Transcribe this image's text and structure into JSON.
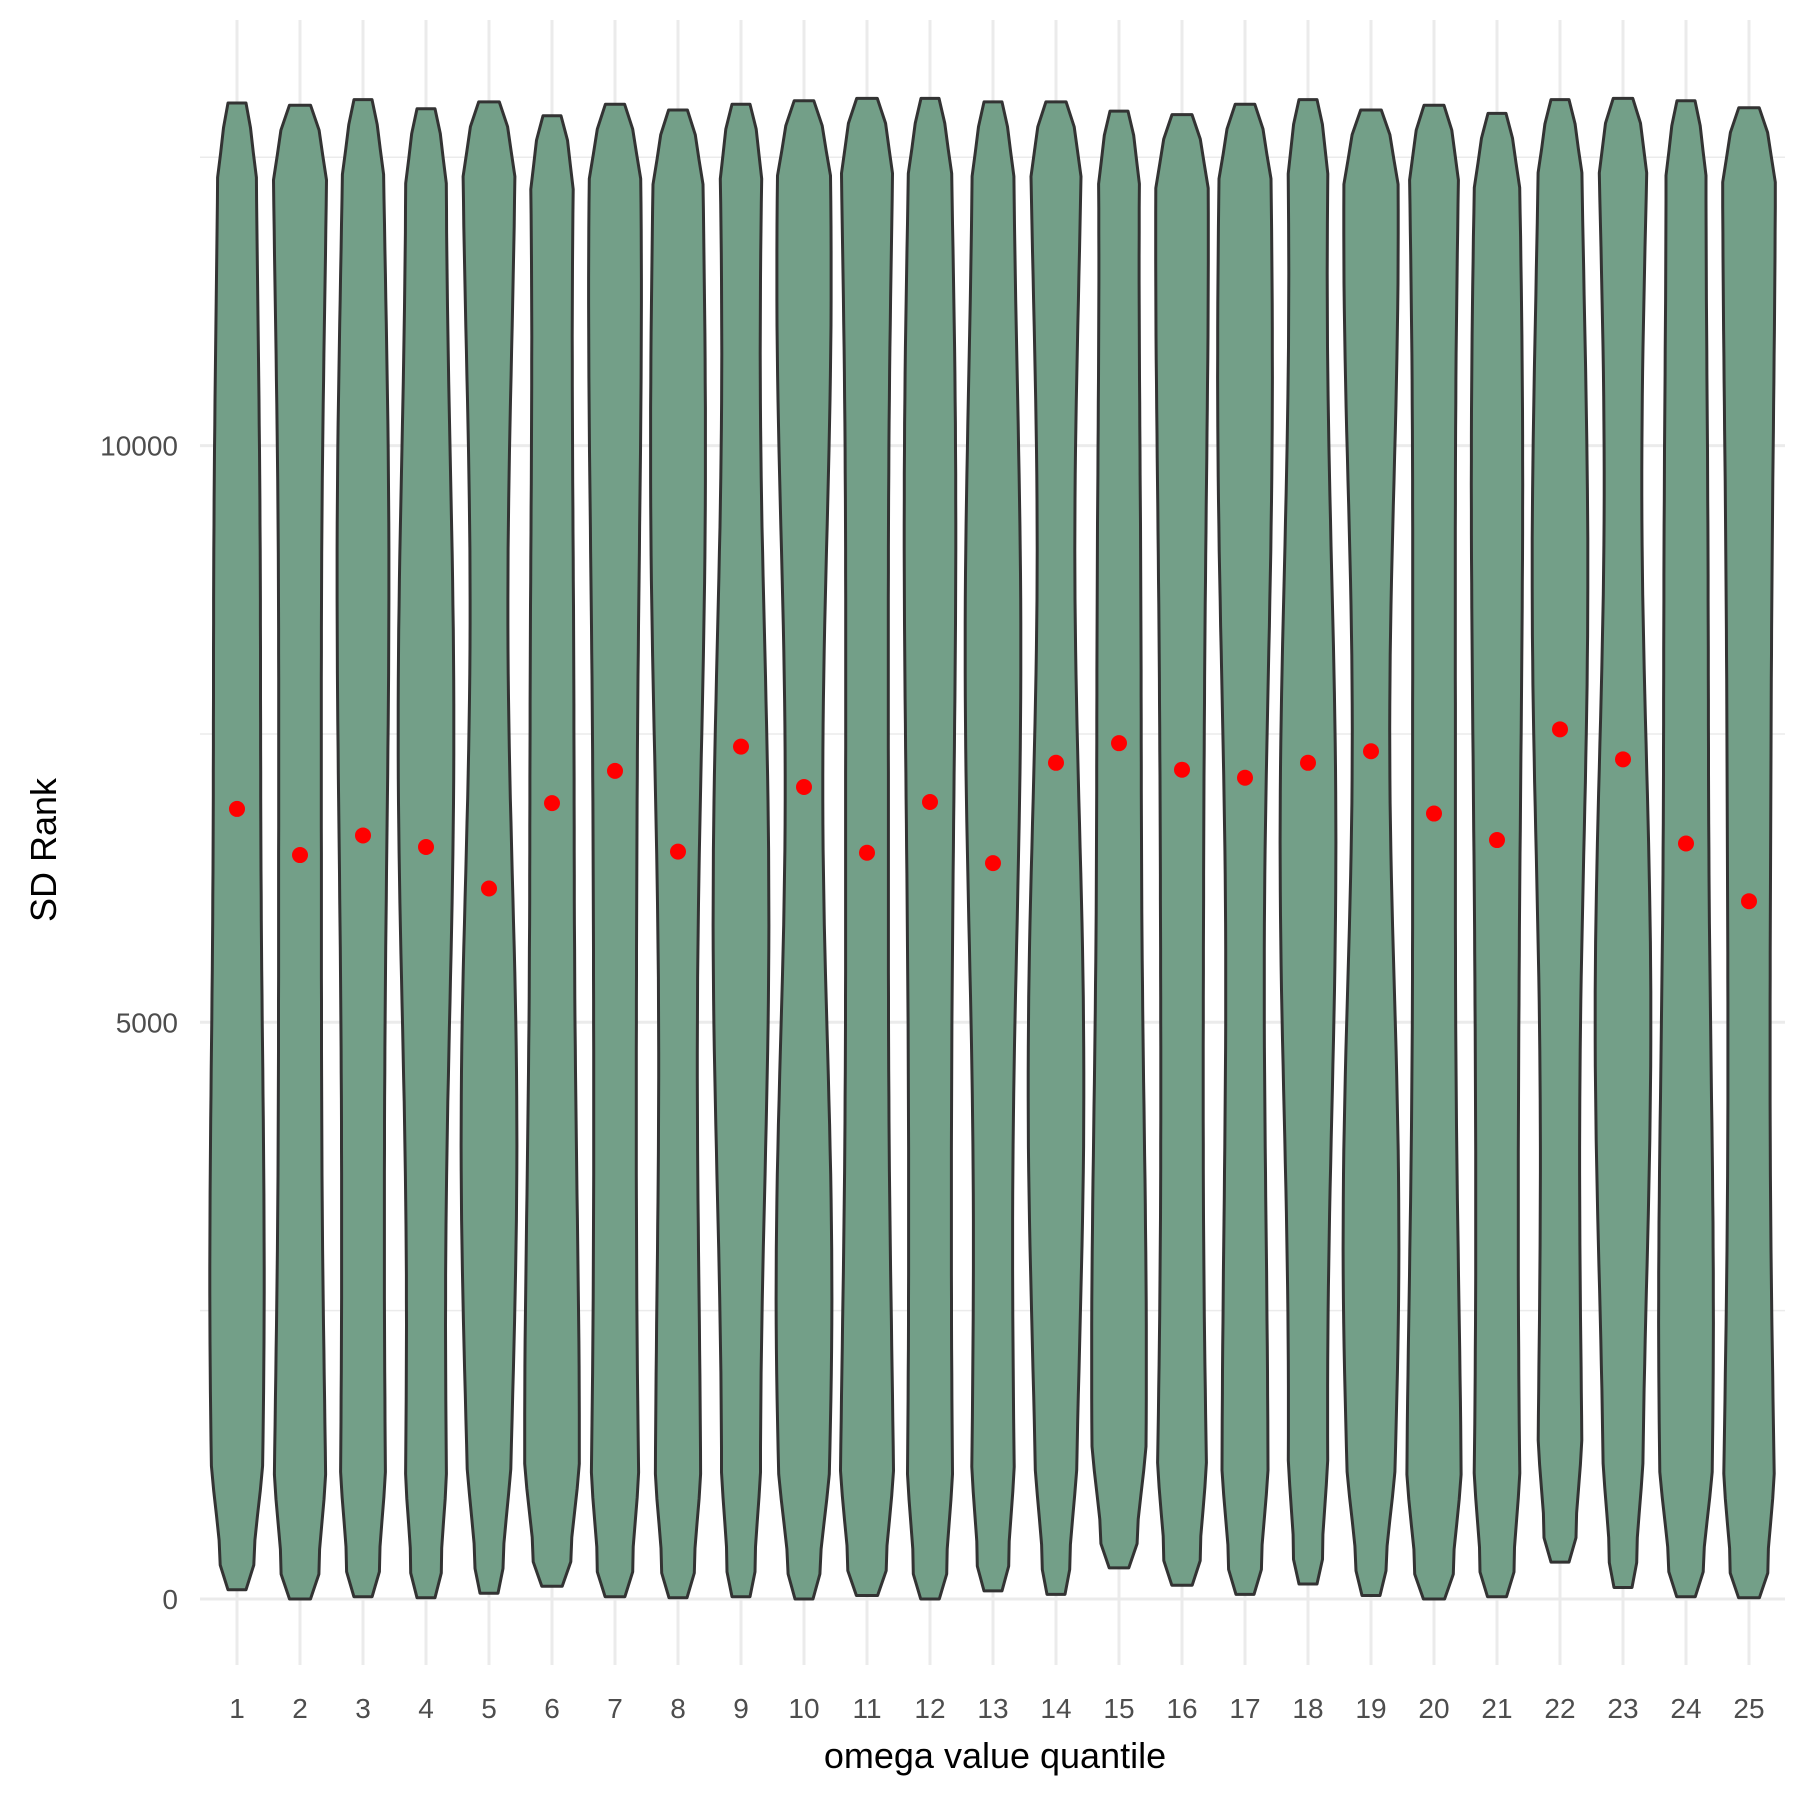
{
  "chart_data": {
    "type": "violin",
    "title": "",
    "xlabel": "omega value quantile",
    "ylabel": "SD Rank",
    "categories": [
      "1",
      "2",
      "3",
      "4",
      "5",
      "6",
      "7",
      "8",
      "9",
      "10",
      "11",
      "12",
      "13",
      "14",
      "15",
      "16",
      "17",
      "18",
      "19",
      "20",
      "21",
      "22",
      "23",
      "24",
      "25"
    ],
    "y_ticks": [
      0,
      5000,
      10000
    ],
    "ylim": [
      -300,
      13700
    ],
    "grid": true,
    "colors": {
      "violin_fill": "#739f88",
      "violin_stroke": "#333333",
      "median_point": "#ff0000",
      "grid": "#ebebeb"
    },
    "medians": [
      6850,
      6450,
      6620,
      6520,
      6160,
      6900,
      7180,
      6480,
      7390,
      7040,
      6470,
      6910,
      6380,
      7250,
      7420,
      7190,
      7120,
      7250,
      7350,
      6810,
      6580,
      7540,
      7280,
      6550,
      6050
    ],
    "min_values": [
      80,
      0,
      20,
      10,
      50,
      110,
      20,
      10,
      20,
      0,
      30,
      0,
      70,
      40,
      270,
      120,
      40,
      130,
      30,
      0,
      20,
      320,
      100,
      20,
      10
    ],
    "max_values": [
      12970,
      12950,
      13000,
      12920,
      12980,
      12860,
      12960,
      12910,
      12960,
      12990,
      13010,
      13010,
      12980,
      12980,
      12900,
      12870,
      12960,
      13000,
      12910,
      12950,
      12880,
      13000,
      13010,
      12990,
      12930
    ]
  }
}
